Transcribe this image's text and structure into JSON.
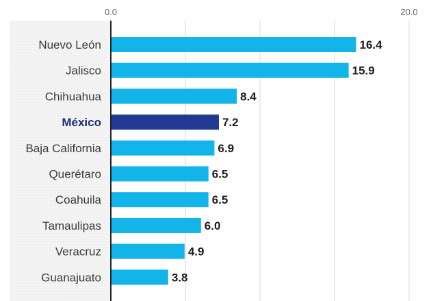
{
  "chart_data": {
    "type": "bar",
    "orientation": "horizontal",
    "categories": [
      "Nuevo León",
      "Jalisco",
      "Chihuahua",
      "México",
      "Baja California",
      "Querétaro",
      "Coahuila",
      "Tamaulipas",
      "Veracruz",
      "Guanajuato"
    ],
    "values": [
      16.4,
      15.9,
      8.4,
      7.2,
      6.9,
      6.5,
      6.5,
      6.0,
      4.9,
      3.8
    ],
    "value_labels": [
      "16.4",
      "15.9",
      "8.4",
      "7.2",
      "6.9",
      "6.5",
      "6.5",
      "6.0",
      "4.9",
      "3.8"
    ],
    "highlight_category": "México",
    "xlim": [
      0,
      20
    ],
    "ticks": [
      {
        "value": 0,
        "label": "0.0"
      },
      {
        "value": 20,
        "label": "20.0"
      }
    ],
    "gridlines": [
      5,
      10,
      15,
      20
    ],
    "grid": true,
    "title": "",
    "xlabel": "",
    "ylabel": "",
    "colors": {
      "bar": "#12b4ea",
      "highlight": "#203a94",
      "grid": "#d9d9d9",
      "axis": "#222222",
      "label_panel": "#f1f1f1"
    }
  }
}
